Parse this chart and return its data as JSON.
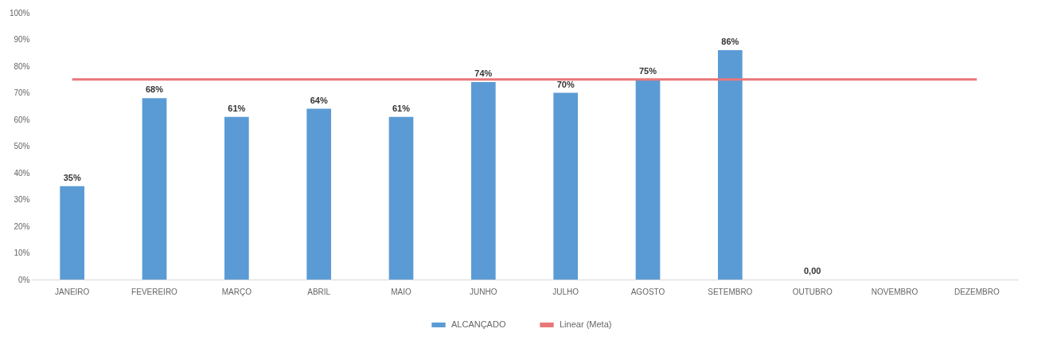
{
  "chart_data": {
    "type": "bar",
    "categories": [
      "JANEIRO",
      "FEVEREIRO",
      "MARÇO",
      "ABRIL",
      "MAIO",
      "JUNHO",
      "JULHO",
      "AGOSTO",
      "SETEMBRO",
      "OUTUBRO",
      "NOVEMBRO",
      "DEZEMBRO"
    ],
    "series": [
      {
        "name": "ALCANÇADO",
        "color": "#5b9bd5",
        "values": [
          35,
          68,
          61,
          64,
          61,
          74,
          70,
          75,
          86,
          0,
          null,
          null
        ],
        "value_labels": [
          "35%",
          "68%",
          "61%",
          "64%",
          "61%",
          "74%",
          "70%",
          "75%",
          "86%",
          "0,00",
          null,
          null
        ]
      },
      {
        "name": "Linear (Meta)",
        "type": "line",
        "color": "#e8777a",
        "values": [
          75,
          75,
          75,
          75,
          75,
          75,
          75,
          75,
          75,
          75,
          75,
          75
        ]
      }
    ],
    "ylim": [
      0,
      100
    ],
    "yticks": [
      {
        "value": 0,
        "label": "0%"
      },
      {
        "value": 10,
        "label": "10%"
      },
      {
        "value": 20,
        "label": "20%"
      },
      {
        "value": 30,
        "label": "30%"
      },
      {
        "value": 40,
        "label": "40%"
      },
      {
        "value": 50,
        "label": "50%"
      },
      {
        "value": 60,
        "label": "60%"
      },
      {
        "value": 70,
        "label": "70%"
      },
      {
        "value": 80,
        "label": "80%"
      },
      {
        "value": 90,
        "label": "90%"
      },
      {
        "value": 100,
        "label": "100%"
      }
    ],
    "grid": false,
    "legend": "bottom",
    "marker": "none",
    "line_style": "solid"
  }
}
